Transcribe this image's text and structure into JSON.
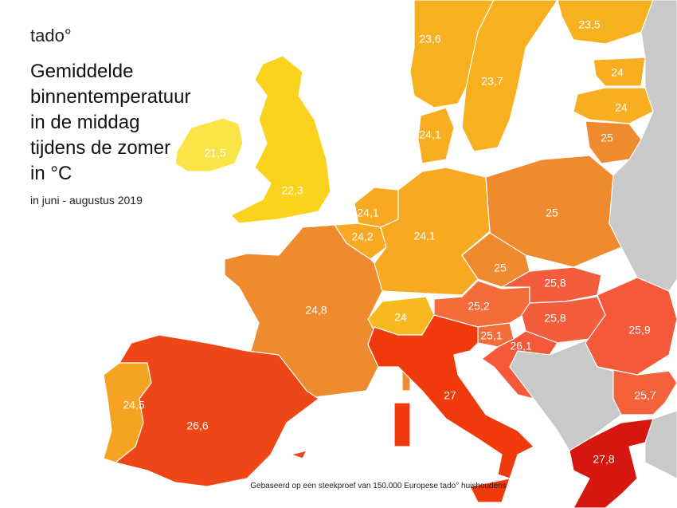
{
  "brand": "tado°",
  "title": [
    "Gemiddelde",
    "binnentemperatuur",
    "in de middag",
    "tijdens de zomer",
    "in °C"
  ],
  "subtitle": "in juni - augustus 2019",
  "footnote": "Gebaseerd op een steekproef van 150.000 Europese tado° huishoudens",
  "regions": [
    {
      "value": 23.6,
      "label": "23,6",
      "color": "#f7b01f"
    },
    {
      "value": 23.7,
      "label": "23,7",
      "color": "#f7b01f"
    },
    {
      "value": 23.5,
      "label": "23,5",
      "color": "#f7b01f"
    },
    {
      "value": 24,
      "label": "24",
      "color": "#f7ae20"
    },
    {
      "value": 24,
      "label": "24",
      "color": "#f7ae20"
    },
    {
      "value": 25,
      "label": "25",
      "color": "#f08a2e"
    },
    {
      "value": 24.1,
      "label": "24,1",
      "color": "#f7ae20"
    },
    {
      "value": 21.5,
      "label": "21,5",
      "color": "#fbe448"
    },
    {
      "value": 22.3,
      "label": "22,3",
      "color": "#fbd21e"
    },
    {
      "value": 24.1,
      "label": "24,1",
      "color": "#f7aa21"
    },
    {
      "value": 24.2,
      "label": "24,2",
      "color": "#f7aa21"
    },
    {
      "value": 24.1,
      "label": "24,1",
      "color": "#f7aa21"
    },
    {
      "value": 25,
      "label": "25",
      "color": "#f08a2e"
    },
    {
      "value": 25,
      "label": "25",
      "color": "#f08a2e"
    },
    {
      "value": 24.8,
      "label": "24,8",
      "color": "#f08a2e"
    },
    {
      "value": 24,
      "label": "24",
      "color": "#f7b820"
    },
    {
      "value": 25.2,
      "label": "25,2",
      "color": "#f36c3a"
    },
    {
      "value": 25.8,
      "label": "25,8",
      "color": "#f45d3c"
    },
    {
      "value": 25.8,
      "label": "25,8",
      "color": "#f45d3c"
    },
    {
      "value": 25.9,
      "label": "25,9",
      "color": "#f45a3a"
    },
    {
      "value": 25.1,
      "label": "25,1",
      "color": "#f36c3a"
    },
    {
      "value": 26.1,
      "label": "26,1",
      "color": "#f45a3a"
    },
    {
      "value": 27,
      "label": "27",
      "color": "#f03a0c"
    },
    {
      "value": 25.7,
      "label": "25,7",
      "color": "#f4613a"
    },
    {
      "value": 24.5,
      "label": "24,5",
      "color": "#f6a223"
    },
    {
      "value": 26.6,
      "label": "26,6",
      "color": "#ee4617"
    },
    {
      "value": 27.8,
      "label": "27,8",
      "color": "#d6170f"
    }
  ]
}
